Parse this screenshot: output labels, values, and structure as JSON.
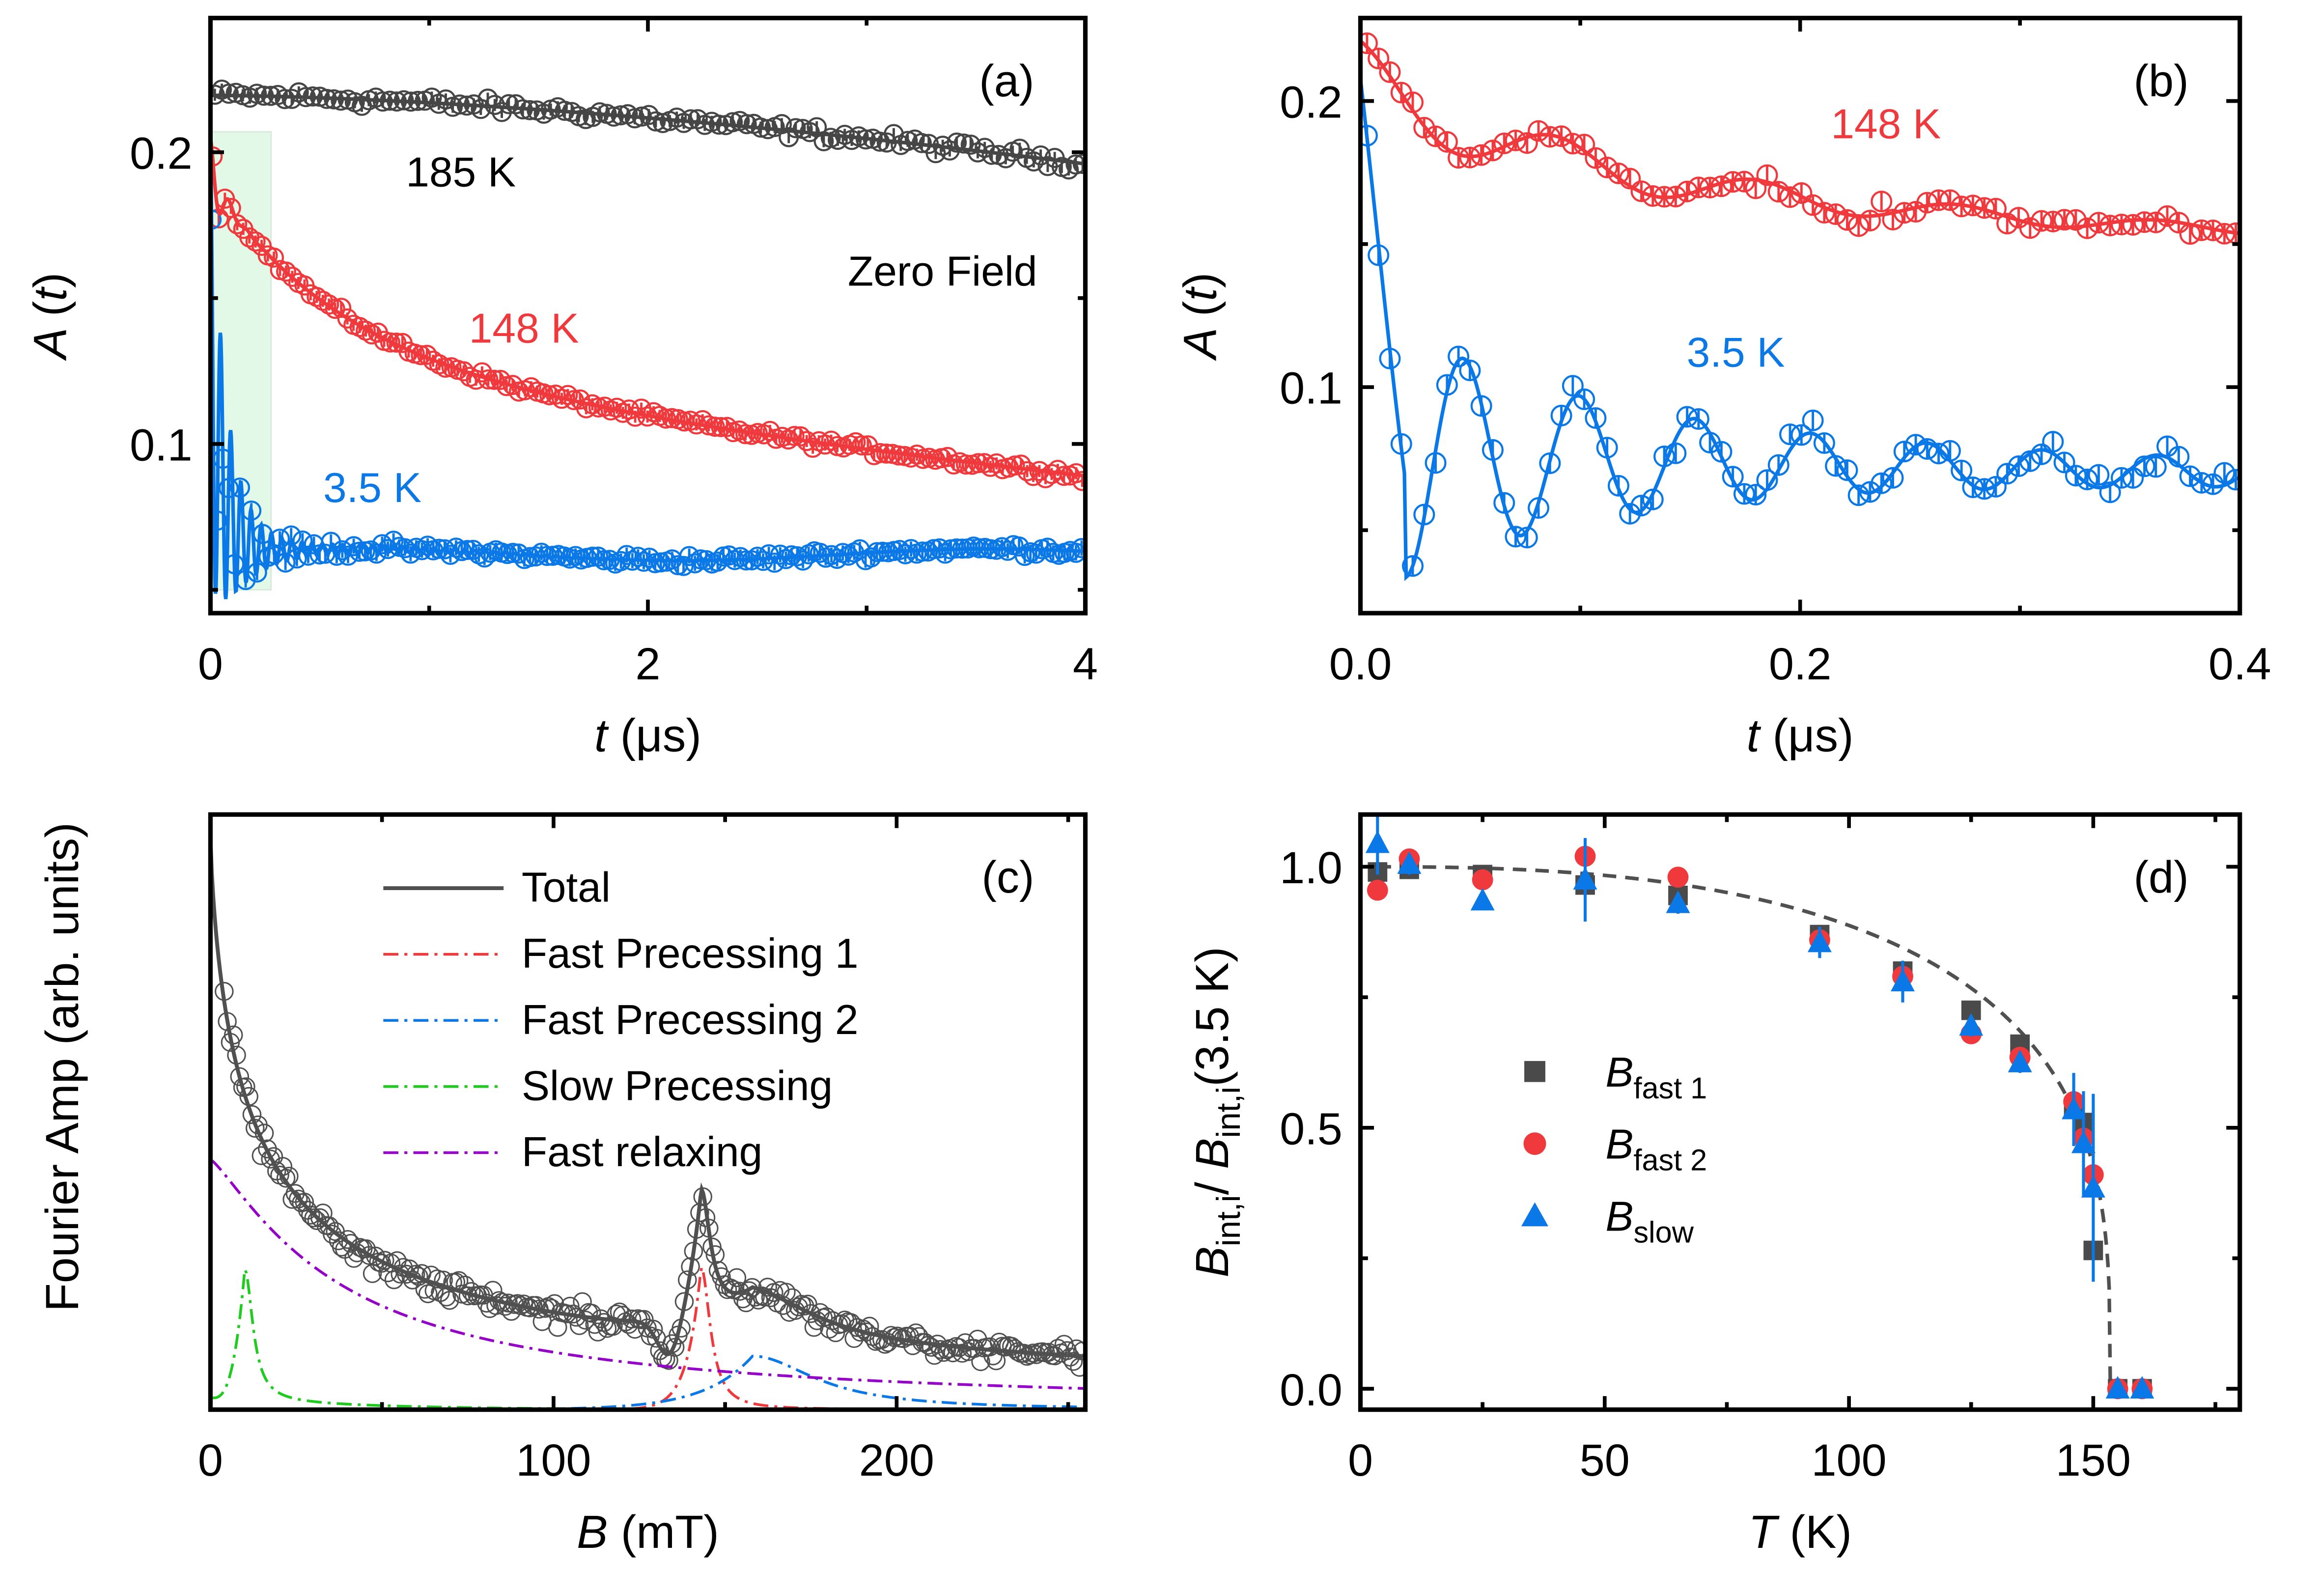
{
  "chart_data": [
    {
      "id": "a",
      "type": "scatter",
      "panel_label": "(a)",
      "xlabel_italic": "t",
      "xlabel_unit": "(μs)",
      "ylabel_italic": "A",
      "ylabel_paren": "(t)",
      "xlim": [
        0,
        4
      ],
      "ylim": [
        0.042,
        0.246
      ],
      "xticks": [
        0,
        2,
        4
      ],
      "xtick_labels": [
        "0",
        "2",
        "4"
      ],
      "yticks": [
        0.1,
        0.2
      ],
      "ytick_labels": [
        "0.1",
        "0.2"
      ],
      "annotation": "Zero Field",
      "shaded_region": {
        "x": [
          0,
          0.27
        ],
        "y": [
          0.05,
          0.207
        ],
        "color": "#e3f9e8"
      },
      "series": [
        {
          "name": "185 K",
          "color": "#464646",
          "fit": {
            "a0": 0.2195,
            "a1": 0.1965,
            "shape": "slow-decay"
          }
        },
        {
          "name": "148 K",
          "color": "#f0393c",
          "fit": {
            "start": 0.205,
            "end": 0.1,
            "shape": "relaxing"
          }
        },
        {
          "name": "3.5 K",
          "color": "#0a78e6",
          "fit": {
            "start": 0.2,
            "baseline": 0.062,
            "shape": "oscillating"
          }
        }
      ]
    },
    {
      "id": "b",
      "type": "scatter",
      "panel_label": "(b)",
      "xlabel_italic": "t",
      "xlabel_unit": "(μs)",
      "ylabel_italic": "A",
      "ylabel_paren": "(t)",
      "xlim": [
        0,
        0.4
      ],
      "ylim": [
        0.021,
        0.229
      ],
      "xticks": [
        0.0,
        0.2,
        0.4
      ],
      "xtick_labels": [
        "0.0",
        "0.2",
        "0.4"
      ],
      "yticks": [
        0.1,
        0.2
      ],
      "ytick_labels": [
        "0.1",
        "0.2"
      ],
      "series": [
        {
          "name": "148 K",
          "color": "#f0393c",
          "fit": {
            "start": 0.207,
            "end": 0.148,
            "freq_per_us": 11.5
          }
        },
        {
          "name": "3.5 K",
          "color": "#0a78e6",
          "fit": {
            "start": 0.2,
            "end": 0.065,
            "freq_per_us": 21.5
          }
        }
      ]
    },
    {
      "id": "c",
      "type": "line",
      "panel_label": "(c)",
      "xlabel_italic": "B",
      "xlabel_unit": "(mT)",
      "ylabel": "Fourier Amp (arb. units)",
      "xlim": [
        0,
        255
      ],
      "xticks": [
        0,
        100,
        200
      ],
      "xtick_labels": [
        "0",
        "100",
        "200"
      ],
      "legend_position": "top-center",
      "series": [
        {
          "name": "Total",
          "color": "#505050",
          "style": "solid"
        },
        {
          "name": "Fast Precessing 1",
          "color": "#f0393c",
          "style": "dash-dot",
          "peak_mT": 143
        },
        {
          "name": "Fast Precessing 2",
          "color": "#0a78e6",
          "style": "dash-dot",
          "peak_mT": 158
        },
        {
          "name": "Slow Precessing",
          "color": "#1ecb1e",
          "style": "dash-dot",
          "peak_mT": 10
        },
        {
          "name": "Fast relaxing",
          "color": "#9400c8",
          "style": "dash-dot",
          "peak_mT": 0
        }
      ]
    },
    {
      "id": "d",
      "type": "scatter",
      "panel_label": "(d)",
      "xlabel_italic": "T",
      "xlabel_unit": "(K)",
      "ylabel_parts": [
        "B",
        "int,i",
        "/ ",
        "B",
        "int,i",
        "(3.5 K)"
      ],
      "xlim": [
        0,
        180
      ],
      "ylim": [
        -0.04,
        1.1
      ],
      "xticks": [
        0,
        50,
        100,
        150
      ],
      "xtick_labels": [
        "0",
        "50",
        "100",
        "150"
      ],
      "yticks": [
        0.0,
        0.5,
        1.0
      ],
      "ytick_labels": [
        "0.0",
        "0.5",
        "1.0"
      ],
      "legend_position": "center-left",
      "fit": {
        "Tc": 153.5,
        "beta": 0.3,
        "style": "dashed",
        "color": "#505050"
      },
      "series": [
        {
          "name": "B",
          "subscript": "fast 1",
          "marker": "square",
          "color": "#4a4a4a",
          "x": [
            3.5,
            10,
            25,
            46,
            65,
            94,
            111,
            125,
            135,
            146,
            148,
            150,
            155,
            160
          ],
          "y": [
            0.99,
            0.995,
            0.985,
            0.965,
            0.945,
            0.87,
            0.8,
            0.725,
            0.66,
            0.54,
            0.51,
            0.265,
            0.0,
            0.0
          ]
        },
        {
          "name": "B",
          "subscript": "fast 2",
          "marker": "circle",
          "color": "#f0393c",
          "x": [
            3.5,
            10,
            25,
            46,
            65,
            94,
            111,
            125,
            135,
            146,
            148,
            150,
            155,
            160
          ],
          "y": [
            0.955,
            1.015,
            0.975,
            1.02,
            0.98,
            0.86,
            0.79,
            0.68,
            0.635,
            0.55,
            0.48,
            0.41,
            0.0,
            0.0
          ]
        },
        {
          "name": "B",
          "subscript": "slow",
          "marker": "triangle",
          "color": "#0a78e6",
          "x": [
            3.5,
            10,
            25,
            46,
            65,
            94,
            111,
            125,
            135,
            146,
            148,
            150,
            155,
            160
          ],
          "y": [
            1.045,
            1.005,
            0.935,
            0.975,
            0.93,
            0.855,
            0.78,
            0.695,
            0.625,
            0.535,
            0.47,
            0.385,
            0.0,
            0.0
          ],
          "err": [
            0.06,
            0.02,
            0.01,
            0.08,
            0.02,
            0.03,
            0.04,
            0.02,
            0.02,
            0.07,
            0.1,
            0.18,
            0.0,
            0.0
          ]
        }
      ]
    }
  ]
}
